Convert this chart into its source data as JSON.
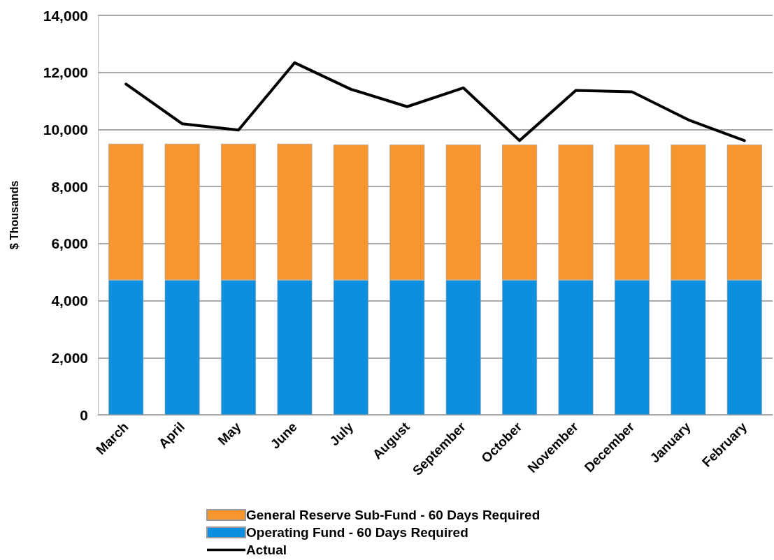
{
  "chart_data": {
    "type": "bar",
    "ylabel": "$ Thousands",
    "stacked": true,
    "categories": [
      "March",
      "April",
      "May",
      "June",
      "July",
      "August",
      "September",
      "October",
      "November",
      "December",
      "January",
      "February"
    ],
    "series": [
      {
        "name": "Operating Fund - 60 Days Required",
        "color": "#0d8fe0",
        "values": [
          4720,
          4720,
          4720,
          4720,
          4720,
          4720,
          4720,
          4720,
          4720,
          4720,
          4720,
          4720
        ]
      },
      {
        "name": "General Reserve Sub-Fund - 60 Days Required",
        "color": "#f7962f",
        "values": [
          4780,
          4780,
          4780,
          4780,
          4750,
          4750,
          4750,
          4750,
          4750,
          4750,
          4750,
          4750
        ]
      },
      {
        "name": "Actual",
        "type": "line",
        "color": "#000000",
        "values": [
          11590,
          10200,
          9980,
          12340,
          11410,
          10800,
          11460,
          9610,
          11370,
          11320,
          10340,
          9610
        ]
      }
    ],
    "ylim": [
      0,
      14000
    ],
    "yticks": [
      0,
      {
        "value": 2000,
        "label": "2,000"
      },
      {
        "value": 4000,
        "label": "4,000"
      },
      {
        "value": 6000,
        "label": "6,000"
      },
      {
        "value": 8000,
        "label": "8,000"
      },
      {
        "value": 10000,
        "label": "10,000"
      },
      {
        "value": 12000,
        "label": "12,000"
      },
      {
        "value": 14000,
        "label": "14,000"
      }
    ],
    "grid": "y",
    "legend": "bottom",
    "marker": "none",
    "line_style": "solid"
  }
}
